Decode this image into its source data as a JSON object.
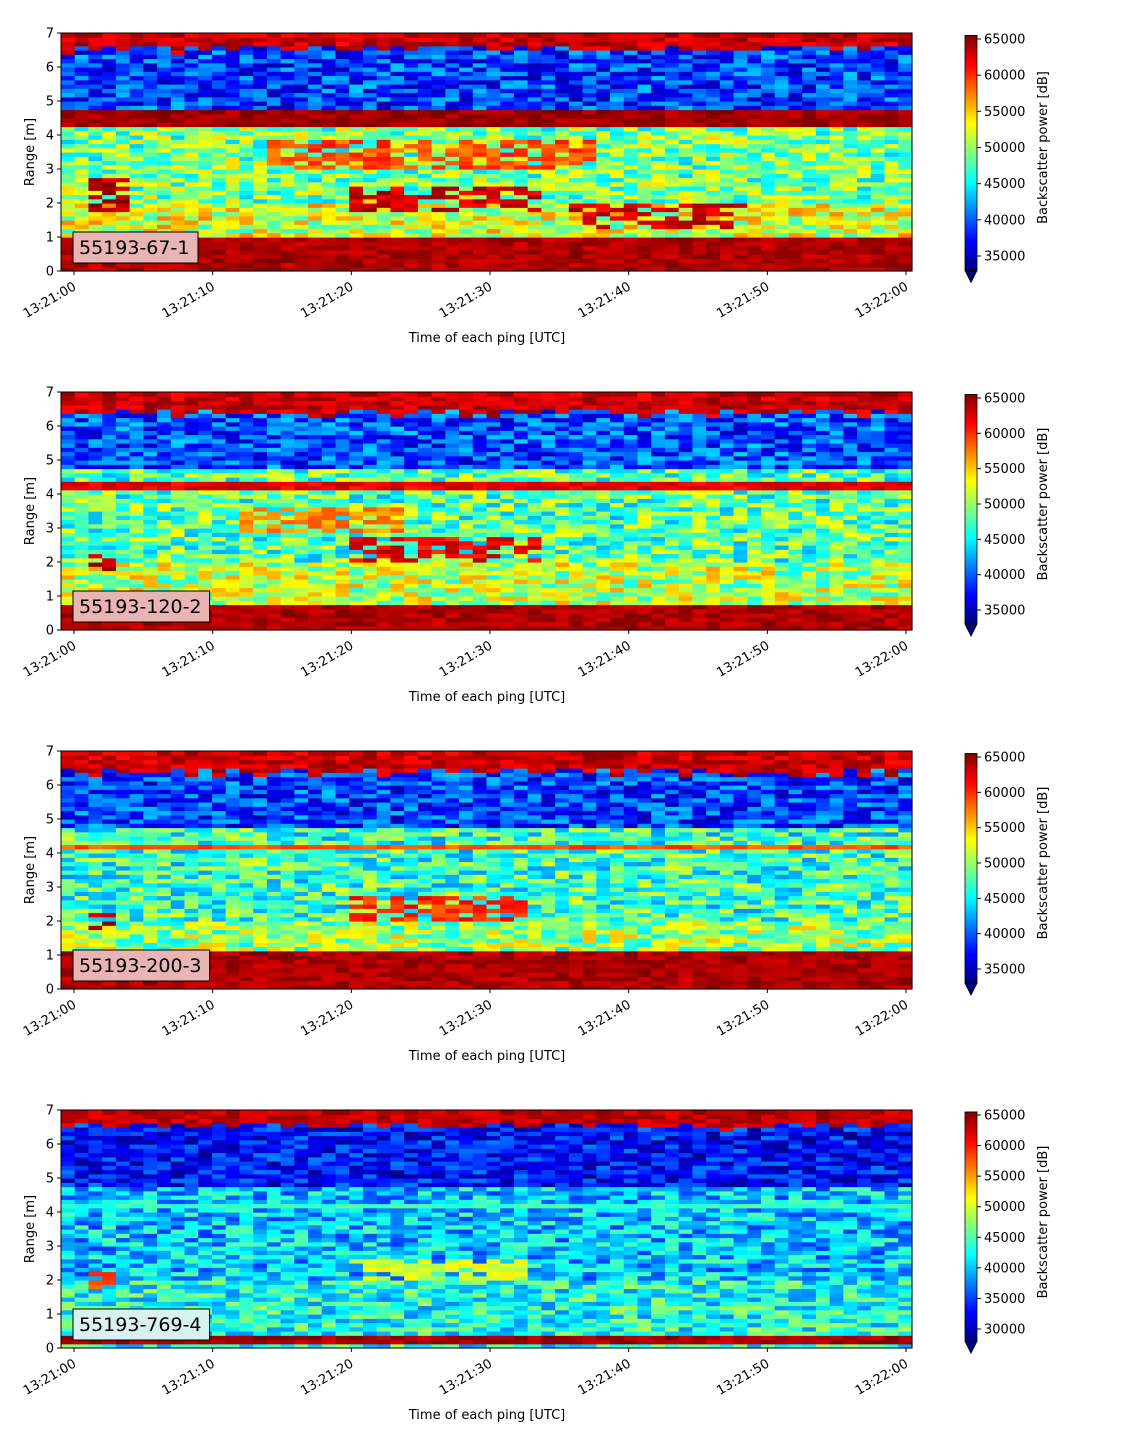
{
  "colormap": {
    "name": "jet",
    "stops": [
      "#00007f",
      "#0000ff",
      "#007fff",
      "#00ffff",
      "#7fff7f",
      "#ffff00",
      "#ff7f00",
      "#ff0000",
      "#7f0000"
    ],
    "under_color": "#00007f"
  },
  "chart_data": [
    {
      "type": "heatmap",
      "label": "55193-67-1",
      "label_box_color": "#e8b4b4",
      "xlabel": "Time of each ping [UTC]",
      "ylabel": "Range [m]",
      "x_ticks": [
        "13:21:00",
        "13:21:10",
        "13:21:20",
        "13:21:30",
        "13:21:40",
        "13:21:50",
        "13:22:00"
      ],
      "y_ticks": [
        "0",
        "1",
        "2",
        "3",
        "4",
        "5",
        "6",
        "7"
      ],
      "ylim": [
        0,
        7
      ],
      "colorbar": {
        "label": "Backscatter power [dB]",
        "ticks": [
          "35000",
          "40000",
          "45000",
          "50000",
          "55000",
          "60000",
          "65000"
        ],
        "range": [
          33000,
          65500
        ],
        "extend": "min"
      },
      "features": {
        "surface_ranges": [
          6.55
        ],
        "bands": [
          {
            "range": [
              4.3,
              4.8
            ],
            "value": 64500
          }
        ],
        "bottom_range": [
          0,
          1.0
        ],
        "below_surface_level": 39000,
        "mid_level": 49000,
        "layers": [
          {
            "t0": 14,
            "t1": 38,
            "range": [
              3.0,
              3.9
            ],
            "value": 59000
          },
          {
            "t0": 20,
            "t1": 34,
            "range": [
              1.7,
              2.5
            ],
            "value": 63000
          },
          {
            "t0": 1,
            "t1": 4,
            "range": [
              1.8,
              2.7
            ],
            "value": 64000
          },
          {
            "t0": 36,
            "t1": 49,
            "range": [
              1.2,
              2.0
            ],
            "value": 63000
          }
        ]
      }
    },
    {
      "type": "heatmap",
      "label": "55193-120-2",
      "label_box_color": "#e8b4b4",
      "xlabel": "Time of each ping [UTC]",
      "ylabel": "Range [m]",
      "x_ticks": [
        "13:21:00",
        "13:21:10",
        "13:21:20",
        "13:21:30",
        "13:21:40",
        "13:21:50",
        "13:22:00"
      ],
      "y_ticks": [
        "0",
        "1",
        "2",
        "3",
        "4",
        "5",
        "6",
        "7"
      ],
      "ylim": [
        0,
        7
      ],
      "colorbar": {
        "label": "Backscatter power [dB]",
        "ticks": [
          "35000",
          "40000",
          "45000",
          "50000",
          "55000",
          "60000",
          "65000"
        ],
        "range": [
          33000,
          65500
        ],
        "extend": "min"
      },
      "features": {
        "surface_ranges": [
          6.4
        ],
        "bands": [
          {
            "range": [
              4.15,
              4.4
            ],
            "value": 62000
          }
        ],
        "bottom_range": [
          0,
          0.8
        ],
        "below_surface_level": 39500,
        "mid_level": 48000,
        "layers": [
          {
            "t0": 20,
            "t1": 34,
            "range": [
              2.0,
              2.8
            ],
            "value": 62000
          },
          {
            "t0": 1,
            "t1": 3,
            "range": [
              1.8,
              2.3
            ],
            "value": 64000
          },
          {
            "t0": 12,
            "t1": 24,
            "range": [
              2.9,
              3.6
            ],
            "value": 57000
          }
        ]
      }
    },
    {
      "type": "heatmap",
      "label": "55193-200-3",
      "label_box_color": "#e8b4b4",
      "xlabel": "Time of each ping [UTC]",
      "ylabel": "Range [m]",
      "x_ticks": [
        "13:21:00",
        "13:21:10",
        "13:21:20",
        "13:21:30",
        "13:21:40",
        "13:21:50",
        "13:22:00"
      ],
      "y_ticks": [
        "0",
        "1",
        "2",
        "3",
        "4",
        "5",
        "6",
        "7"
      ],
      "ylim": [
        0,
        7
      ],
      "colorbar": {
        "label": "Backscatter power [dB]",
        "ticks": [
          "35000",
          "40000",
          "45000",
          "50000",
          "55000",
          "60000",
          "65000"
        ],
        "range": [
          33000,
          65500
        ],
        "extend": "min"
      },
      "features": {
        "surface_ranges": [
          6.4
        ],
        "bands": [
          {
            "range": [
              4.15,
              4.3
            ],
            "value": 59000
          }
        ],
        "bottom_range": [
          0,
          1.1
        ],
        "below_surface_level": 39000,
        "mid_level": 47000,
        "layers": [
          {
            "t0": 20,
            "t1": 33,
            "range": [
              2.0,
              2.7
            ],
            "value": 60000
          },
          {
            "t0": 1,
            "t1": 3,
            "range": [
              1.7,
              2.3
            ],
            "value": 64000
          }
        ]
      }
    },
    {
      "type": "heatmap",
      "label": "55193-769-4",
      "label_box_color": "#d8f2f2",
      "xlabel": "Time of each ping [UTC]",
      "ylabel": "Range [m]",
      "x_ticks": [
        "13:21:00",
        "13:21:10",
        "13:21:20",
        "13:21:30",
        "13:21:40",
        "13:21:50",
        "13:22:00"
      ],
      "y_ticks": [
        "0",
        "1",
        "2",
        "3",
        "4",
        "5",
        "6",
        "7"
      ],
      "ylim": [
        0,
        7
      ],
      "colorbar": {
        "label": "Backscatter power [dB]",
        "ticks": [
          "30000",
          "35000",
          "40000",
          "45000",
          "50000",
          "55000",
          "60000",
          "65000"
        ],
        "range": [
          28000,
          65500
        ],
        "extend": "min"
      },
      "features": {
        "surface_ranges": [
          6.55
        ],
        "bands": [
          {
            "range": [
              4.1,
              4.25
            ],
            "value": 44000
          }
        ],
        "bottom_range": [
          0.1,
          0.35
        ],
        "below_surface_level": 33000,
        "mid_level": 40000,
        "layers": [
          {
            "t0": 20,
            "t1": 33,
            "range": [
              2.0,
              2.6
            ],
            "value": 50000
          },
          {
            "t0": 1,
            "t1": 3,
            "range": [
              1.7,
              2.2
            ],
            "value": 58000
          }
        ]
      }
    }
  ]
}
